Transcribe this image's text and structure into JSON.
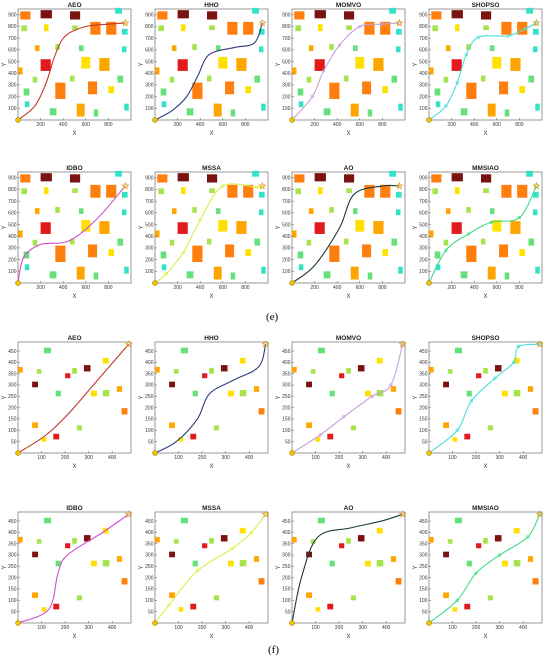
{
  "figure_labels": {
    "e": "(e)",
    "f": "(f)"
  },
  "colors": {
    "dark": "#7a1212",
    "red": "#e31a1c",
    "orange": "#ff7f0e",
    "amber": "#ffa500",
    "yellow": "#ffe000",
    "lime": "#a6e34d",
    "green": "#66e07a",
    "cyan": "#33e3c8",
    "start_marker": "#f2c400",
    "goal_marker": "#e0a020",
    "path": "#444444"
  },
  "chart_data": [
    {
      "group": "e",
      "type": "scatter",
      "xlabel": "X",
      "ylabel": "Y",
      "xlim": [
        0,
        1000
      ],
      "ylim": [
        0,
        950
      ],
      "xticks": [
        200,
        400,
        600,
        800
      ],
      "yticks": [
        100,
        200,
        300,
        400,
        500,
        600,
        700,
        800,
        900
      ],
      "start": [
        0,
        0
      ],
      "goal": [
        950,
        830
      ],
      "obstacles": [
        {
          "x": 20,
          "y": 860,
          "w": 90,
          "h": 70,
          "c": "orange"
        },
        {
          "x": 200,
          "y": 870,
          "w": 100,
          "h": 70,
          "c": "dark"
        },
        {
          "x": 460,
          "y": 860,
          "w": 90,
          "h": 70,
          "c": "dark"
        },
        {
          "x": 860,
          "y": 910,
          "w": 60,
          "h": 50,
          "c": "cyan"
        },
        {
          "x": 30,
          "y": 760,
          "w": 50,
          "h": 50,
          "c": "lime"
        },
        {
          "x": 230,
          "y": 760,
          "w": 40,
          "h": 60,
          "c": "yellow"
        },
        {
          "x": 480,
          "y": 770,
          "w": 50,
          "h": 40,
          "c": "lime"
        },
        {
          "x": 640,
          "y": 730,
          "w": 90,
          "h": 110,
          "c": "orange"
        },
        {
          "x": 780,
          "y": 730,
          "w": 90,
          "h": 110,
          "c": "orange"
        },
        {
          "x": 920,
          "y": 730,
          "w": 50,
          "h": 50,
          "c": "cyan"
        },
        {
          "x": 150,
          "y": 590,
          "w": 40,
          "h": 50,
          "c": "amber"
        },
        {
          "x": 330,
          "y": 600,
          "w": 40,
          "h": 50,
          "c": "lime"
        },
        {
          "x": 540,
          "y": 590,
          "w": 40,
          "h": 50,
          "c": "green"
        },
        {
          "x": 920,
          "y": 580,
          "w": 40,
          "h": 50,
          "c": "cyan"
        },
        {
          "x": 0,
          "y": 390,
          "w": 40,
          "h": 60,
          "c": "amber"
        },
        {
          "x": 200,
          "y": 420,
          "w": 90,
          "h": 100,
          "c": "red"
        },
        {
          "x": 560,
          "y": 440,
          "w": 80,
          "h": 100,
          "c": "yellow"
        },
        {
          "x": 720,
          "y": 420,
          "w": 90,
          "h": 110,
          "c": "amber"
        },
        {
          "x": 130,
          "y": 320,
          "w": 40,
          "h": 50,
          "c": "lime"
        },
        {
          "x": 460,
          "y": 330,
          "w": 40,
          "h": 50,
          "c": "lime"
        },
        {
          "x": 880,
          "y": 320,
          "w": 50,
          "h": 60,
          "c": "green"
        },
        {
          "x": 50,
          "y": 210,
          "w": 50,
          "h": 60,
          "c": "green"
        },
        {
          "x": 330,
          "y": 180,
          "w": 90,
          "h": 140,
          "c": "orange"
        },
        {
          "x": 620,
          "y": 220,
          "w": 80,
          "h": 110,
          "c": "orange"
        },
        {
          "x": 800,
          "y": 230,
          "w": 50,
          "h": 60,
          "c": "yellow"
        },
        {
          "x": 60,
          "y": 110,
          "w": 40,
          "h": 50,
          "c": "cyan"
        },
        {
          "x": 280,
          "y": 40,
          "w": 60,
          "h": 60,
          "c": "green"
        },
        {
          "x": 520,
          "y": 30,
          "w": 70,
          "h": 110,
          "c": "amber"
        },
        {
          "x": 670,
          "y": 30,
          "w": 40,
          "h": 60,
          "c": "green"
        },
        {
          "x": 940,
          "y": 80,
          "w": 40,
          "h": 60,
          "c": "cyan"
        }
      ],
      "series": [
        {
          "name": "AEO",
          "color": "#c0392b",
          "markers": false,
          "points": [
            [
              0,
              0
            ],
            [
              150,
              120
            ],
            [
              250,
              320
            ],
            [
              330,
              560
            ],
            [
              420,
              720
            ],
            [
              600,
              800
            ],
            [
              800,
              820
            ],
            [
              950,
              830
            ]
          ]
        },
        {
          "name": "HHO",
          "color": "#2c3e7a",
          "markers": false,
          "points": [
            [
              0,
              0
            ],
            [
              150,
              80
            ],
            [
              280,
              200
            ],
            [
              380,
              380
            ],
            [
              480,
              560
            ],
            [
              700,
              620
            ],
            [
              880,
              660
            ],
            [
              950,
              830
            ]
          ]
        },
        {
          "name": "MOMVO",
          "color": "#c9a0dc",
          "markers": true,
          "points": [
            [
              0,
              0
            ],
            [
              180,
              200
            ],
            [
              280,
              420
            ],
            [
              420,
              640
            ],
            [
              600,
              800
            ],
            [
              800,
              820
            ],
            [
              950,
              830
            ]
          ]
        },
        {
          "name": "SHOPSO",
          "color": "#48e0d8",
          "markers": true,
          "points": [
            [
              0,
              0
            ],
            [
              150,
              120
            ],
            [
              250,
              320
            ],
            [
              330,
              560
            ],
            [
              440,
              710
            ],
            [
              700,
              720
            ],
            [
              850,
              780
            ],
            [
              950,
              830
            ]
          ]
        },
        {
          "name": "IDBO",
          "color": "#d14fd1",
          "markers": false,
          "points": [
            [
              0,
              0
            ],
            [
              50,
              220
            ],
            [
              200,
              330
            ],
            [
              450,
              360
            ],
            [
              700,
              550
            ],
            [
              950,
              830
            ]
          ]
        },
        {
          "name": "MSSA",
          "color": "#d8f04a",
          "markers": true,
          "points": [
            [
              0,
              0
            ],
            [
              100,
              80
            ],
            [
              250,
              260
            ],
            [
              400,
              540
            ],
            [
              600,
              830
            ],
            [
              900,
              820
            ],
            [
              950,
              830
            ]
          ]
        },
        {
          "name": "AO",
          "color": "#1f3a3a",
          "markers": false,
          "points": [
            [
              0,
              0
            ],
            [
              200,
              150
            ],
            [
              420,
              470
            ],
            [
              550,
              760
            ],
            [
              800,
              830
            ],
            [
              950,
              830
            ]
          ]
        },
        {
          "name": "MMSIAO",
          "color": "#3ddc84",
          "markers": true,
          "points": [
            [
              0,
              0
            ],
            [
              150,
              280
            ],
            [
              350,
              420
            ],
            [
              550,
              520
            ],
            [
              800,
              560
            ],
            [
              950,
              830
            ]
          ]
        }
      ]
    },
    {
      "group": "f",
      "type": "scatter",
      "xlabel": "X",
      "ylabel": "Y",
      "xlim": [
        0,
        480
      ],
      "ylim": [
        0,
        490
      ],
      "xticks": [
        100,
        200,
        300,
        400
      ],
      "yticks": [
        50,
        100,
        150,
        200,
        250,
        300,
        350,
        400,
        450
      ],
      "start": [
        0,
        0
      ],
      "goal": [
        470,
        480
      ],
      "obstacles": [
        {
          "x": 110,
          "y": 440,
          "w": 30,
          "h": 25,
          "c": "green"
        },
        {
          "x": 0,
          "y": 355,
          "w": 20,
          "h": 25,
          "c": "amber"
        },
        {
          "x": 80,
          "y": 350,
          "w": 20,
          "h": 20,
          "c": "lime"
        },
        {
          "x": 230,
          "y": 350,
          "w": 20,
          "h": 25,
          "c": "lime"
        },
        {
          "x": 360,
          "y": 395,
          "w": 25,
          "h": 25,
          "c": "yellow"
        },
        {
          "x": 60,
          "y": 290,
          "w": 25,
          "h": 25,
          "c": "dark"
        },
        {
          "x": 200,
          "y": 330,
          "w": 22,
          "h": 22,
          "c": "red"
        },
        {
          "x": 280,
          "y": 360,
          "w": 28,
          "h": 28,
          "c": "dark"
        },
        {
          "x": 420,
          "y": 270,
          "w": 22,
          "h": 25,
          "c": "amber"
        },
        {
          "x": 160,
          "y": 250,
          "w": 22,
          "h": 25,
          "c": "green"
        },
        {
          "x": 310,
          "y": 250,
          "w": 25,
          "h": 25,
          "c": "yellow"
        },
        {
          "x": 360,
          "y": 250,
          "w": 28,
          "h": 28,
          "c": "lime"
        },
        {
          "x": 440,
          "y": 170,
          "w": 25,
          "h": 28,
          "c": "orange"
        },
        {
          "x": 60,
          "y": 110,
          "w": 25,
          "h": 25,
          "c": "amber"
        },
        {
          "x": 250,
          "y": 100,
          "w": 22,
          "h": 22,
          "c": "lime"
        },
        {
          "x": 100,
          "y": 50,
          "w": 20,
          "h": 20,
          "c": "yellow"
        },
        {
          "x": 150,
          "y": 60,
          "w": 25,
          "h": 25,
          "c": "red"
        }
      ],
      "series": [
        {
          "name": "AEO",
          "color": "#c0392b",
          "markers": false,
          "points": [
            [
              0,
              0
            ],
            [
              120,
              80
            ],
            [
              220,
              180
            ],
            [
              320,
              300
            ],
            [
              420,
              420
            ],
            [
              470,
              480
            ]
          ]
        },
        {
          "name": "HHO",
          "color": "#2c3e7a",
          "markers": false,
          "points": [
            [
              0,
              0
            ],
            [
              90,
              50
            ],
            [
              180,
              150
            ],
            [
              230,
              260
            ],
            [
              330,
              320
            ],
            [
              440,
              380
            ],
            [
              470,
              480
            ]
          ]
        },
        {
          "name": "MOMVO",
          "color": "#c9a0dc",
          "markers": true,
          "points": [
            [
              0,
              0
            ],
            [
              120,
              80
            ],
            [
              220,
              160
            ],
            [
              340,
              250
            ],
            [
              420,
              300
            ],
            [
              470,
              480
            ]
          ]
        },
        {
          "name": "SHOPSO",
          "color": "#48e0d8",
          "markers": true,
          "points": [
            [
              0,
              0
            ],
            [
              120,
              100
            ],
            [
              180,
              230
            ],
            [
              280,
              330
            ],
            [
              360,
              400
            ],
            [
              380,
              470
            ],
            [
              470,
              480
            ]
          ]
        },
        {
          "name": "IDBO",
          "color": "#d14fd1",
          "markers": false,
          "points": [
            [
              0,
              0
            ],
            [
              130,
              60
            ],
            [
              170,
              220
            ],
            [
              210,
              300
            ],
            [
              360,
              400
            ],
            [
              470,
              480
            ]
          ]
        },
        {
          "name": "MSSA",
          "color": "#d8f04a",
          "markers": true,
          "points": [
            [
              0,
              0
            ],
            [
              60,
              80
            ],
            [
              180,
              230
            ],
            [
              330,
              330
            ],
            [
              410,
              400
            ],
            [
              470,
              480
            ]
          ]
        },
        {
          "name": "AO",
          "color": "#1f3a3a",
          "markers": false,
          "points": [
            [
              0,
              0
            ],
            [
              40,
              200
            ],
            [
              110,
              380
            ],
            [
              250,
              420
            ],
            [
              380,
              450
            ],
            [
              470,
              480
            ]
          ]
        },
        {
          "name": "MMSIAO",
          "color": "#3ddc84",
          "markers": true,
          "points": [
            [
              0,
              0
            ],
            [
              120,
              100
            ],
            [
              200,
              220
            ],
            [
              300,
              300
            ],
            [
              420,
              380
            ],
            [
              470,
              480
            ]
          ]
        }
      ]
    }
  ]
}
